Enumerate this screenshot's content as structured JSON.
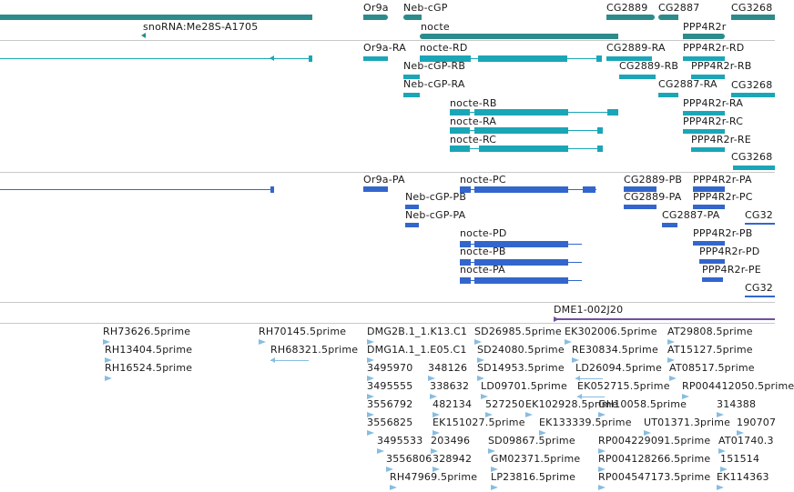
{
  "colors": {
    "gene": "#2e8b8b",
    "mrna": "#1aa6b7",
    "cds": "#3366cc",
    "est": "#87bde0",
    "clone": "#7050a0",
    "divider": "#c8c8c8"
  },
  "gene_track": {
    "labels": [
      "snoRNA:Me28S-A1705",
      "Or9a",
      "Neb-cGP",
      "nocte",
      "CG2889",
      "CG2887",
      "PPP4R2r",
      "CG3268"
    ]
  },
  "mrna_track": {
    "labels": [
      "Or9a-RA",
      "nocte-RD",
      "Neb-cGP-RB",
      "Neb-cGP-RA",
      "nocte-RB",
      "nocte-RA",
      "nocte-RC",
      "CG2889-RA",
      "CG2889-RB",
      "CG2887-RA",
      "PPP4R2r-RD",
      "PPP4R2r-RB",
      "PPP4R2r-RA",
      "PPP4R2r-RC",
      "PPP4R2r-RE",
      "CG3268",
      "CG3268"
    ]
  },
  "cds_track": {
    "labels": [
      "Or9a-PA",
      "nocte-PC",
      "Neb-cGP-PB",
      "Neb-cGP-PA",
      "nocte-PD",
      "nocte-PB",
      "nocte-PA",
      "CG2889-PB",
      "CG2889-PA",
      "CG2887-PA",
      "PPP4R2r-PA",
      "PPP4R2r-PC",
      "PPP4R2r-PB",
      "PPP4R2r-PD",
      "PPP4R2r-PE",
      "CG32",
      "CG32"
    ]
  },
  "clone_track": {
    "labels": [
      "DME1-002J20"
    ]
  },
  "est_track": {
    "labels": [
      "RH73626.5prime",
      "RH13404.5prime",
      "RH16524.5prime",
      "RH70145.5prime",
      "RH68321.5prime",
      "DMG2B.1_1.K13.C1",
      "DMG1A.1_1.E05.C1",
      "3495970",
      "3495555",
      "3556792",
      "3556825",
      "3495533",
      "3556806",
      "348126",
      "338632",
      "482134",
      "EK151027.5prime",
      "203496",
      "328942",
      "RH47969.5prime",
      "SD26985.5prime",
      "SD24080.5prime",
      "SD14953.5prime",
      "LD09701.5prime",
      "527250",
      "SD09867.5prime",
      "GM02371.5prime",
      "LP23816.5prime",
      "EK302006.5prime",
      "RE30834.5prime",
      "LD26094.5prime",
      "EK052715.5prime",
      "EK102928.5prime",
      "EK133339.5prime",
      "AT29808.5prime",
      "AT15127.5prime",
      "AT08517.5prime",
      "RP004412050.5prime",
      "GH10058.5prime",
      "314388",
      "UT01371.3prime",
      "190707",
      "RP004229091.5prime",
      "AT01740.3",
      "RP004128266.5prime",
      "151514",
      "RP004547173.5prime",
      "EK114363"
    ]
  }
}
